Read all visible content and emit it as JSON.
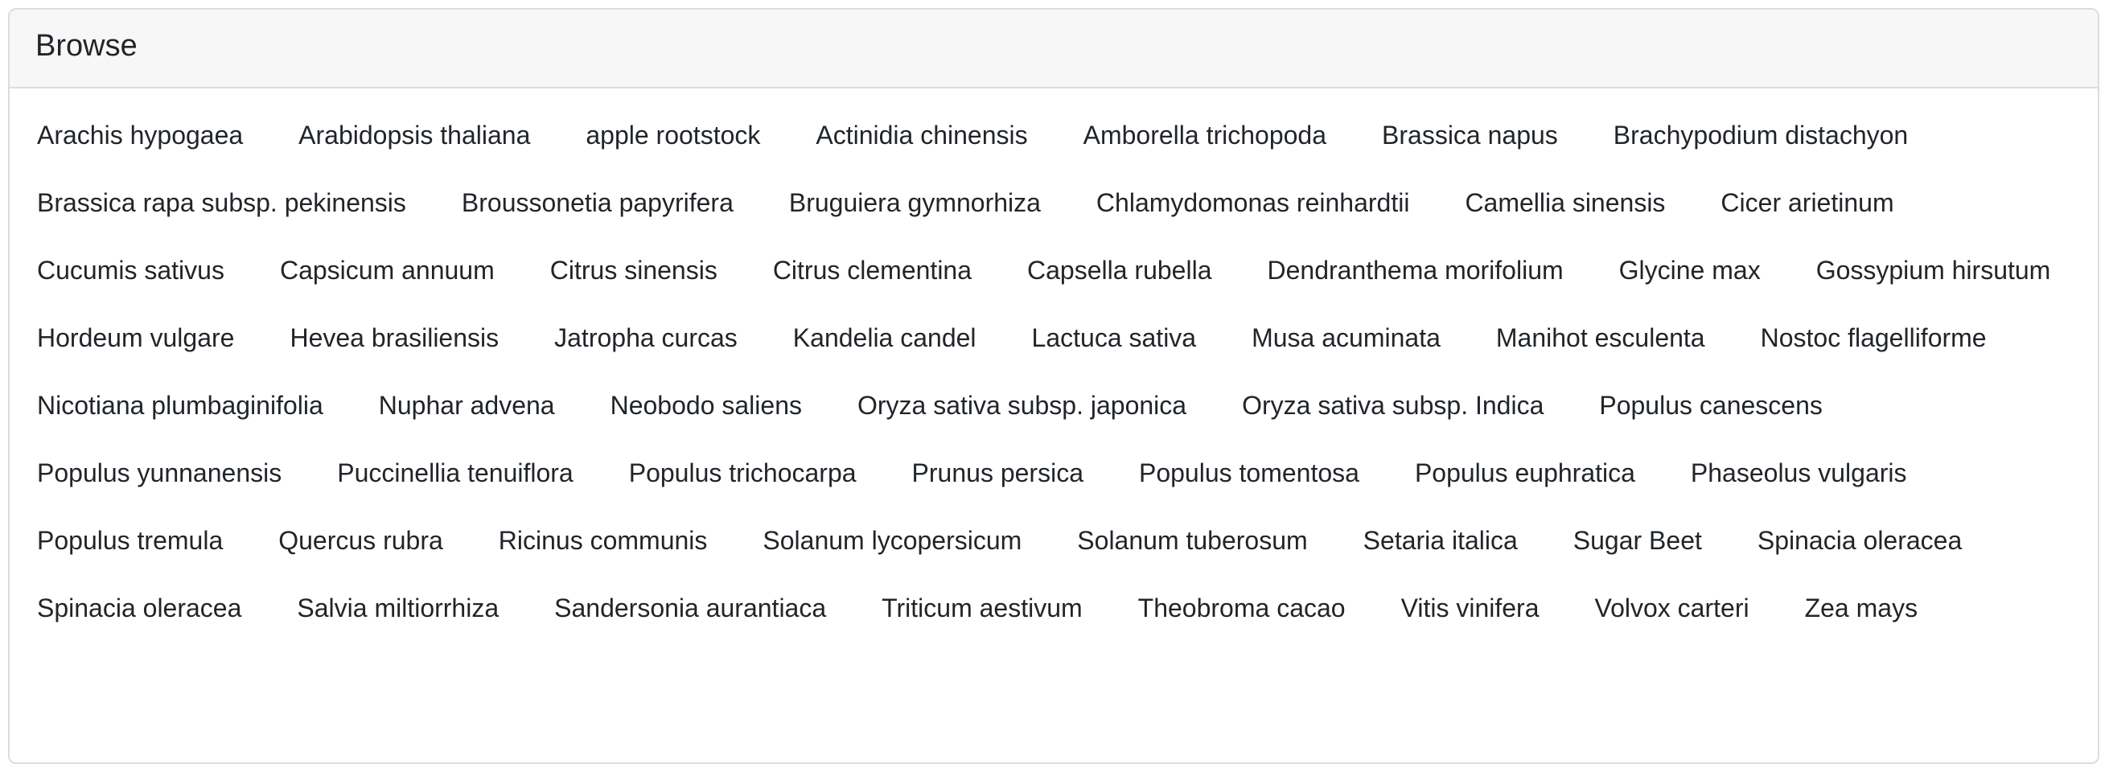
{
  "panel": {
    "title": "Browse"
  },
  "species": [
    "Arachis hypogaea",
    "Arabidopsis thaliana",
    "apple rootstock",
    "Actinidia chinensis",
    "Amborella trichopoda",
    "Brassica napus",
    "Brachypodium distachyon",
    "Brassica rapa subsp. pekinensis",
    "Broussonetia papyrifera",
    "Bruguiera gymnorhiza",
    "Chlamydomonas reinhardtii",
    "Camellia sinensis",
    "Cicer arietinum",
    "Cucumis sativus",
    "Capsicum annuum",
    "Citrus sinensis",
    "Citrus clementina",
    "Capsella rubella",
    "Dendranthema morifolium",
    "Glycine max",
    "Gossypium hirsutum",
    "Hordeum vulgare",
    "Hevea brasiliensis",
    "Jatropha curcas",
    "Kandelia candel",
    "Lactuca sativa",
    "Musa acuminata",
    "Manihot esculenta",
    "Nostoc flagelliforme",
    "Nicotiana plumbaginifolia",
    "Nuphar advena",
    "Neobodo saliens",
    "Oryza sativa subsp. japonica",
    "Oryza sativa subsp. Indica",
    "Populus canescens",
    "Populus yunnanensis",
    "Puccinellia tenuiflora",
    "Populus trichocarpa",
    "Prunus persica",
    "Populus tomentosa",
    "Populus euphratica",
    "Phaseolus vulgaris",
    "Populus tremula",
    "Quercus rubra",
    "Ricinus communis",
    "Solanum lycopersicum",
    "Solanum tuberosum",
    "Setaria italica",
    "Sugar Beet",
    "Spinacia oleracea",
    "Spinacia oleracea",
    "Salvia miltiorrhiza",
    "Sandersonia aurantiaca",
    "Triticum aestivum",
    "Theobroma cacao",
    "Vitis vinifera",
    "Volvox carteri",
    "Zea mays"
  ]
}
